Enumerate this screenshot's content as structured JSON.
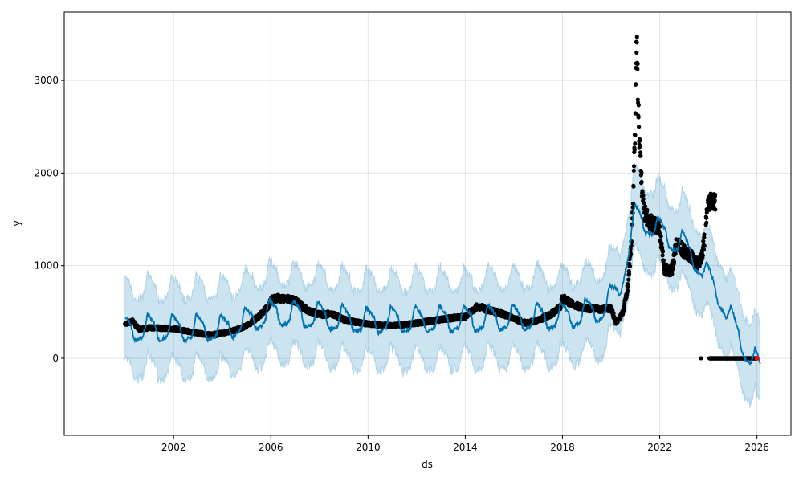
{
  "chart_data": {
    "type": "line",
    "title": "",
    "xlabel": "ds",
    "ylabel": "y",
    "xlim": [
      1997.5,
      2027.4
    ],
    "ylim": [
      -833,
      3738
    ],
    "grid": true,
    "xticks": [
      2002,
      2006,
      2010,
      2014,
      2018,
      2022,
      2026
    ],
    "xtick_labels": [
      "2002",
      "2006",
      "2010",
      "2014",
      "2018",
      "2022",
      "2026"
    ],
    "yticks": [
      0,
      1000,
      2000,
      3000
    ],
    "ytick_labels": [
      "0",
      "1000",
      "2000",
      "3000"
    ],
    "colors": {
      "forecast": "#0072B2",
      "interval": "#0072B2",
      "observed": "#000000",
      "last_point": "#ff0000"
    },
    "forecast": {
      "trend": [
        [
          2000,
          300
        ],
        [
          2004,
          300
        ],
        [
          2006,
          470
        ],
        [
          2008,
          430
        ],
        [
          2010,
          380
        ],
        [
          2014,
          400
        ],
        [
          2018,
          430
        ],
        [
          2019.5,
          500
        ],
        [
          2020.3,
          700
        ],
        [
          2021,
          1500
        ],
        [
          2021.5,
          1450
        ],
        [
          2022,
          1350
        ],
        [
          2023,
          1200
        ],
        [
          2023.5,
          1050
        ],
        [
          2024,
          850
        ],
        [
          2024.5,
          650
        ],
        [
          2025,
          350
        ],
        [
          2025.5,
          100
        ],
        [
          2026.15,
          -150
        ]
      ],
      "seasonal_monthly": [
        150,
        120,
        90,
        60,
        -60,
        -110,
        -100,
        -90,
        -80,
        -60,
        40,
        170
      ],
      "interval_halfwidth": 430,
      "end": 2026.15
    },
    "observed": [
      [
        [
          2000.0,
          380
        ],
        [
          2000.3,
          400
        ],
        [
          2000.6,
          310
        ],
        [
          2001,
          330
        ],
        [
          2002,
          320
        ],
        [
          2003,
          270
        ],
        [
          2003.5,
          250
        ],
        [
          2004,
          270
        ],
        [
          2004.5,
          300
        ],
        [
          2005,
          350
        ],
        [
          2005.5,
          450
        ],
        [
          2005.9,
          560
        ],
        [
          2006,
          640
        ],
        [
          2006.5,
          650
        ],
        [
          2007,
          620
        ],
        [
          2007.5,
          520
        ],
        [
          2008,
          470
        ],
        [
          2008.5,
          480
        ],
        [
          2009,
          420
        ],
        [
          2009.5,
          390
        ],
        [
          2010,
          370
        ],
        [
          2011,
          350
        ],
        [
          2012,
          380
        ],
        [
          2013,
          420
        ],
        [
          2014,
          450
        ],
        [
          2014.5,
          560
        ],
        [
          2015,
          520
        ],
        [
          2015.5,
          480
        ],
        [
          2016,
          430
        ],
        [
          2016.5,
          380
        ],
        [
          2017,
          410
        ],
        [
          2017.5,
          470
        ],
        [
          2017.9,
          550
        ],
        [
          2018,
          650
        ],
        [
          2018.5,
          570
        ],
        [
          2019,
          540
        ],
        [
          2019.5,
          530
        ],
        [
          2020,
          540
        ],
        [
          2020.2,
          380
        ],
        [
          2020.5,
          500
        ],
        [
          2020.7,
          800
        ],
        [
          2020.85,
          1300
        ],
        [
          2020.95,
          2100
        ],
        [
          2021.0,
          2600
        ],
        [
          2021.03,
          3300
        ],
        [
          2021.06,
          3530
        ],
        [
          2021.1,
          2900
        ],
        [
          2021.15,
          2450
        ],
        [
          2021.25,
          1900
        ],
        [
          2021.35,
          1600
        ],
        [
          2021.5,
          1500
        ],
        [
          2021.7,
          1450
        ],
        [
          2022.0,
          1400
        ],
        [
          2022.2,
          950
        ],
        [
          2022.5,
          950
        ],
        [
          2022.7,
          1250
        ],
        [
          2023.0,
          1150
        ],
        [
          2023.3,
          1100
        ],
        [
          2023.5,
          1020
        ],
        [
          2023.7,
          1050
        ],
        [
          2023.85,
          1300
        ]
      ],
      [
        [
          2023.9,
          1500
        ],
        [
          2024.0,
          1700
        ],
        [
          2024.3,
          1690
        ]
      ],
      [
        [
          2023.7,
          0
        ]
      ],
      [
        [
          2024.05,
          0
        ],
        [
          2026.0,
          0
        ]
      ]
    ],
    "last_observed": [
      2026.0,
      0
    ]
  }
}
